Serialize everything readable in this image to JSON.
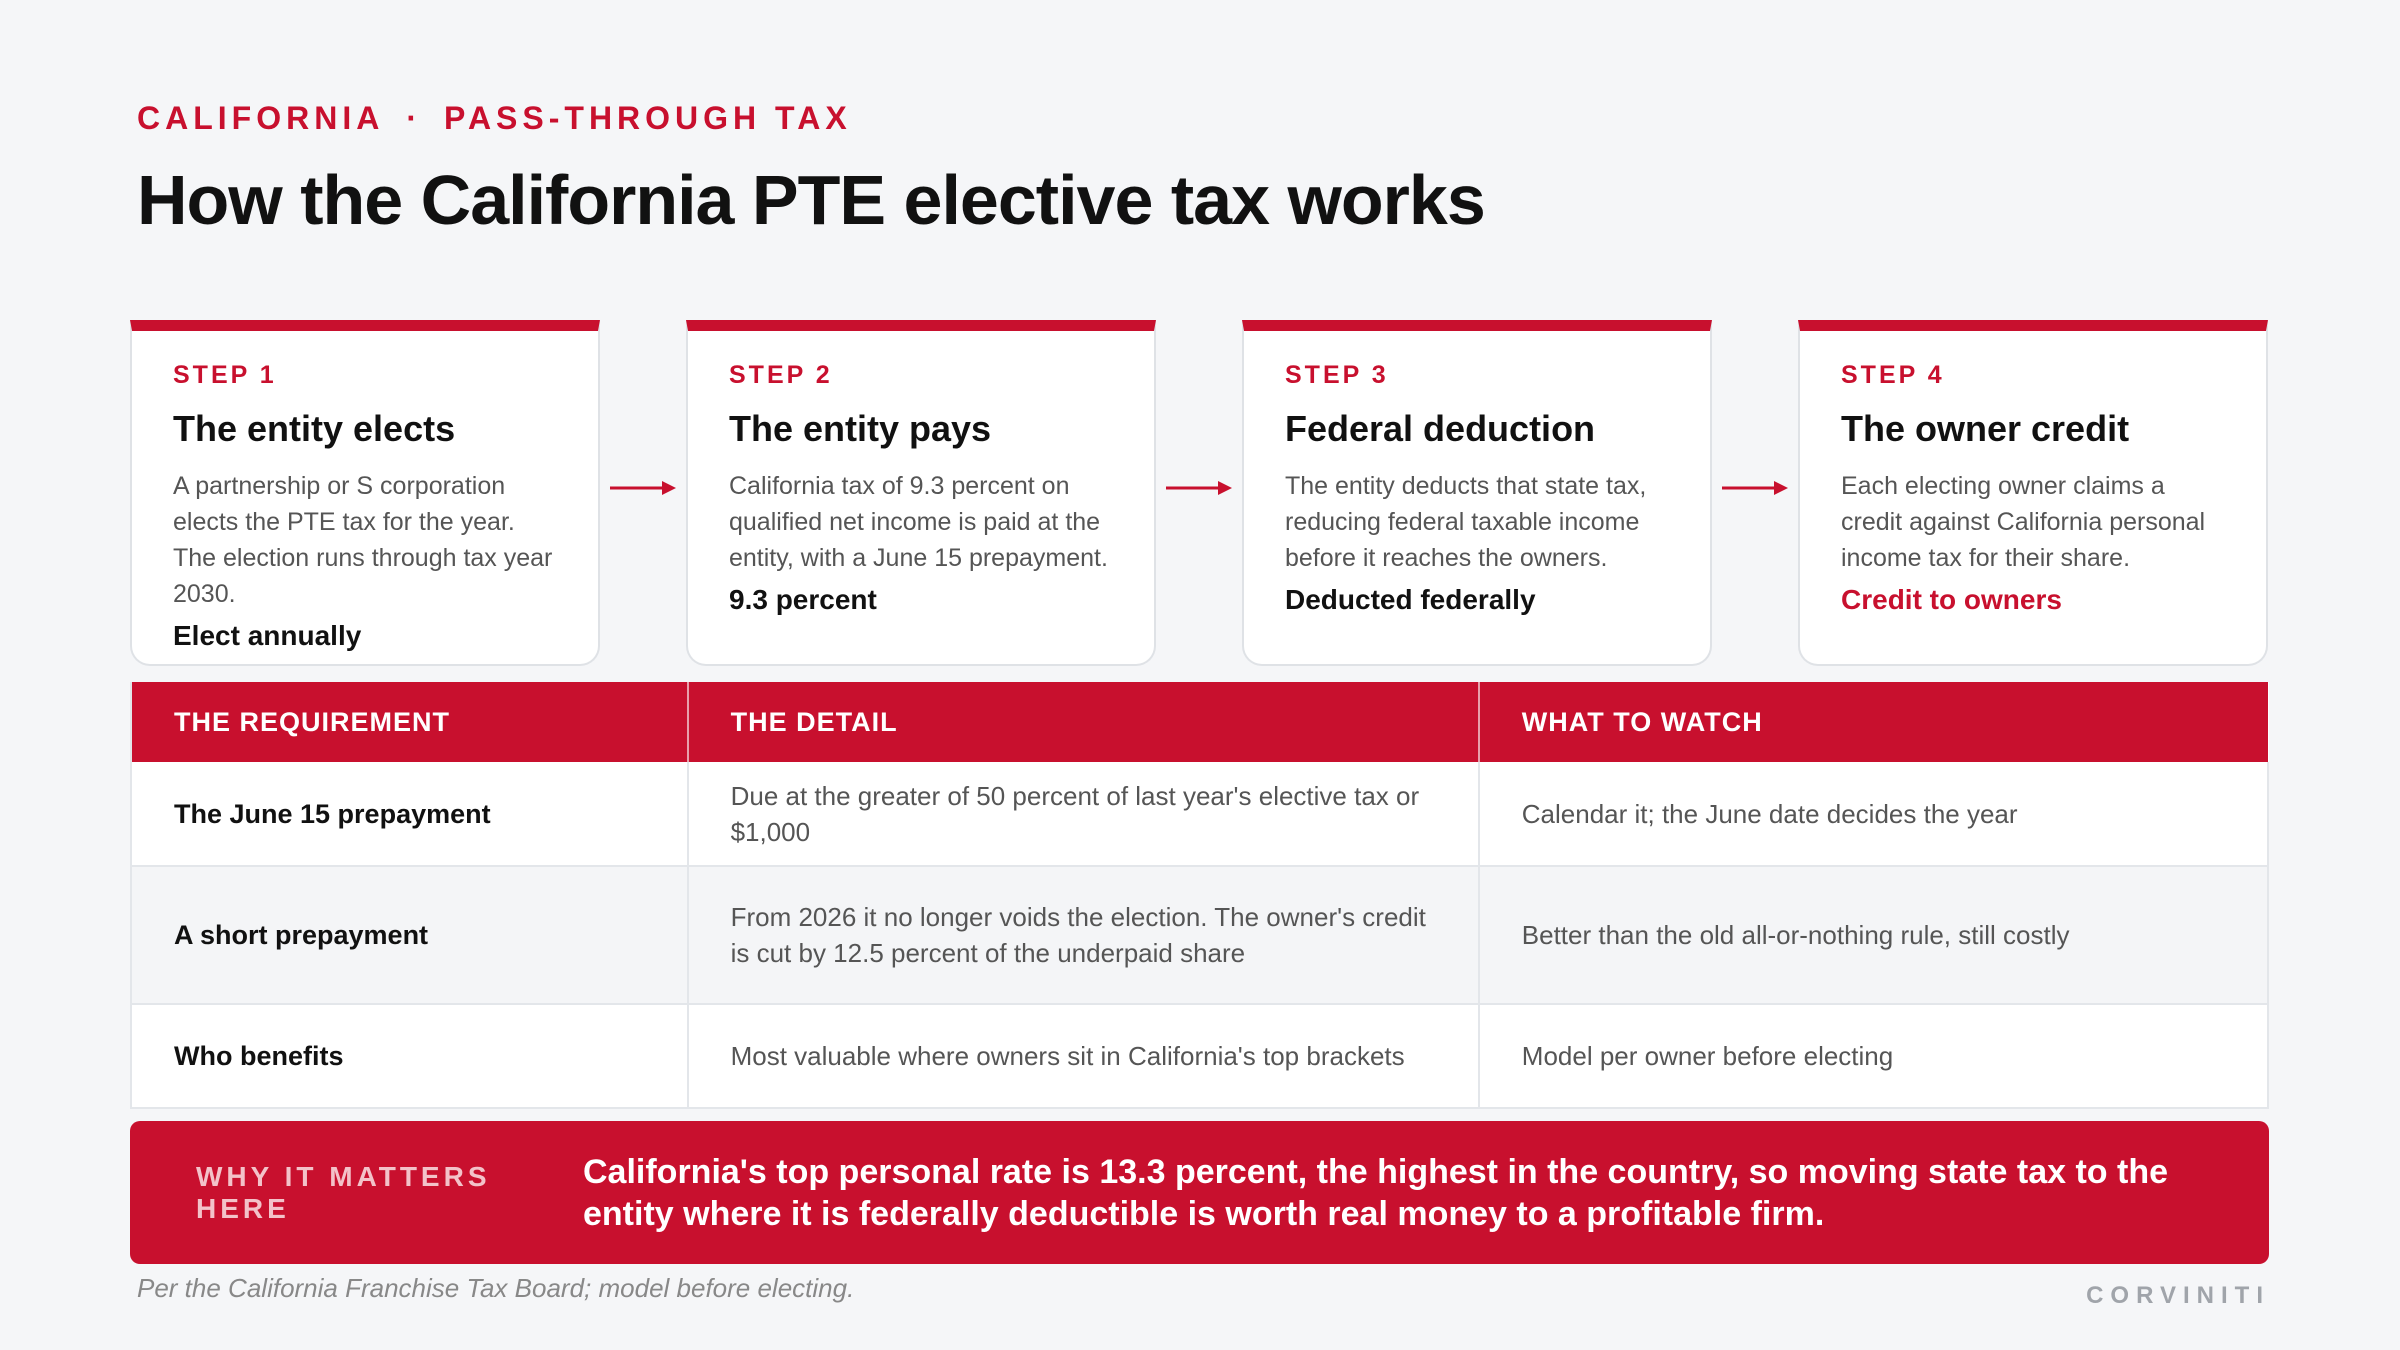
{
  "eyebrow": {
    "region": "CALIFORNIA",
    "separator": "·",
    "topic": "PASS-THROUGH TAX"
  },
  "title": "How the California PTE elective tax works",
  "steps": [
    {
      "label": "STEP 1",
      "heading": "The entity elects",
      "body": "A partnership or S corporation elects the PTE tax for the year. The election runs through tax year 2030.",
      "note": "Elect annually"
    },
    {
      "label": "STEP 2",
      "heading": "The entity pays",
      "body": "California tax of 9.3 percent on qualified net income is paid at the entity, with a June 15 prepayment.",
      "note": "9.3 percent"
    },
    {
      "label": "STEP 3",
      "heading": "Federal deduction",
      "body": "The entity deducts that state tax, reducing federal taxable income before it reaches the owners.",
      "note": "Deducted federally"
    },
    {
      "label": "STEP 4",
      "heading": "The owner credit",
      "body": "Each electing owner claims a credit against California personal income tax for their share.",
      "note": "Credit to owners"
    }
  ],
  "table": {
    "headers": [
      "THE REQUIREMENT",
      "THE DETAIL",
      "WHAT TO WATCH"
    ],
    "rows": [
      [
        "The June 15 prepayment",
        "Due at the greater of 50 percent of last year's elective tax or $1,000",
        "Calendar it; the June date decides the year"
      ],
      [
        "A short prepayment",
        "From 2026 it no longer voids the election. The owner's credit is cut by 12.5 percent of the underpaid share",
        "Better than the old all-or-nothing rule, still costly"
      ],
      [
        "Who benefits",
        "Most valuable where owners sit in California's top brackets",
        "Model per owner before electing"
      ]
    ]
  },
  "callout": {
    "tag": "WHY IT MATTERS HERE",
    "message": "California's top personal rate is 13.3 percent, the highest in the country, so moving state tax to the entity where it is federally deductible is worth real money to a profitable firm."
  },
  "footnote": "Per the California Franchise Tax Board; model before electing.",
  "brand": "CORVINITI",
  "colors": {
    "accent": "#c8102e",
    "background": "#f5f6f8"
  }
}
